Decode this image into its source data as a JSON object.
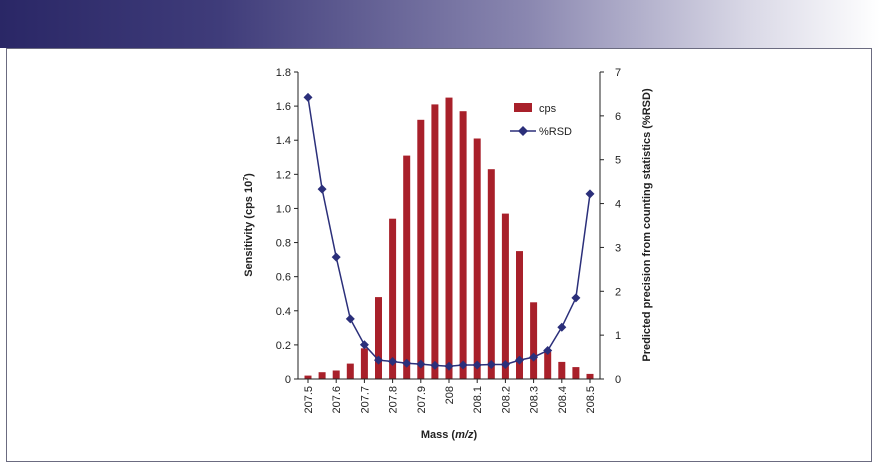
{
  "chart_data": {
    "type": "bar",
    "xlabel_prefix": "Mass (",
    "xlabel_italic": "m/z",
    "xlabel_suffix": ")",
    "ylabel_left_main": "Sensitivity (cps 10",
    "ylabel_left_sup": "7",
    "ylabel_left_end": ")",
    "ylabel_right": "Predicted precision from counting statistics (%RSD)",
    "ylim_left": [
      0,
      1.8
    ],
    "ylim_right": [
      0,
      7
    ],
    "left_ticks": [
      "0",
      "0.2",
      "0.4",
      "0.6",
      "0.8",
      "1.0",
      "1.2",
      "1.4",
      "1.6",
      "1.8"
    ],
    "right_ticks": [
      "0",
      "1",
      "2",
      "3",
      "4",
      "5",
      "6",
      "7"
    ],
    "x_ticks": [
      "207.5",
      "207.6",
      "207.7",
      "207.8",
      "207.9",
      "208",
      "208.1",
      "208.2",
      "208.3",
      "208.4",
      "208.5"
    ],
    "x_range": [
      207.5,
      208.5
    ],
    "legend_position": "top-right",
    "series": [
      {
        "name": "cps",
        "kind": "bar",
        "axis": "left",
        "color": "#a8202a",
        "x": [
          207.5,
          207.55,
          207.6,
          207.65,
          207.7,
          207.75,
          207.8,
          207.85,
          207.9,
          207.95,
          208.0,
          208.05,
          208.1,
          208.15,
          208.2,
          208.25,
          208.3,
          208.35,
          208.4,
          208.45,
          208.5
        ],
        "values": [
          0.02,
          0.04,
          0.05,
          0.09,
          0.18,
          0.48,
          0.94,
          1.31,
          1.52,
          1.61,
          1.65,
          1.57,
          1.41,
          1.23,
          0.97,
          0.75,
          0.45,
          0.16,
          0.1,
          0.07,
          0.03
        ]
      },
      {
        "name": "%RSD",
        "kind": "line",
        "axis": "right",
        "color": "#2b2f7a",
        "x": [
          207.5,
          207.55,
          207.6,
          207.65,
          207.7,
          207.75,
          207.8,
          207.85,
          207.9,
          207.95,
          208.0,
          208.05,
          208.1,
          208.15,
          208.2,
          208.25,
          208.3,
          208.35,
          208.4,
          208.45,
          208.5
        ],
        "values": [
          6.42,
          4.33,
          2.78,
          1.37,
          0.78,
          0.43,
          0.4,
          0.36,
          0.34,
          0.31,
          0.29,
          0.32,
          0.32,
          0.33,
          0.33,
          0.43,
          0.5,
          0.65,
          1.18,
          1.85,
          4.22
        ]
      }
    ]
  }
}
